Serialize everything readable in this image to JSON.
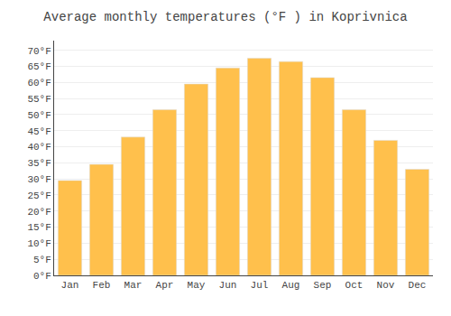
{
  "chart_data": {
    "type": "bar",
    "title": "Average monthly temperatures (°F ) in Koprivnica",
    "categories": [
      "Jan",
      "Feb",
      "Mar",
      "Apr",
      "May",
      "Jun",
      "Jul",
      "Aug",
      "Sep",
      "Oct",
      "Nov",
      "Dec"
    ],
    "values": [
      29.5,
      34.5,
      43.0,
      51.5,
      59.5,
      64.5,
      67.5,
      66.5,
      61.5,
      51.5,
      42.0,
      33.0
    ],
    "color": "#FFC04C",
    "ylim": [
      0,
      73
    ],
    "yticks": [
      {
        "value": 0,
        "label": "0°F"
      },
      {
        "value": 5,
        "label": "5°F"
      },
      {
        "value": 10,
        "label": "10°F"
      },
      {
        "value": 15,
        "label": "15°F"
      },
      {
        "value": 20,
        "label": "20°F"
      },
      {
        "value": 25,
        "label": "25°F"
      },
      {
        "value": 30,
        "label": "30°F"
      },
      {
        "value": 35,
        "label": "35°F"
      },
      {
        "value": 40,
        "label": "40°F"
      },
      {
        "value": 45,
        "label": "45°F"
      },
      {
        "value": 50,
        "label": "50°F"
      },
      {
        "value": 55,
        "label": "55°F"
      },
      {
        "value": 60,
        "label": "60°F"
      },
      {
        "value": 65,
        "label": "65°F"
      },
      {
        "value": 70,
        "label": "70°F"
      }
    ],
    "grid": true
  }
}
